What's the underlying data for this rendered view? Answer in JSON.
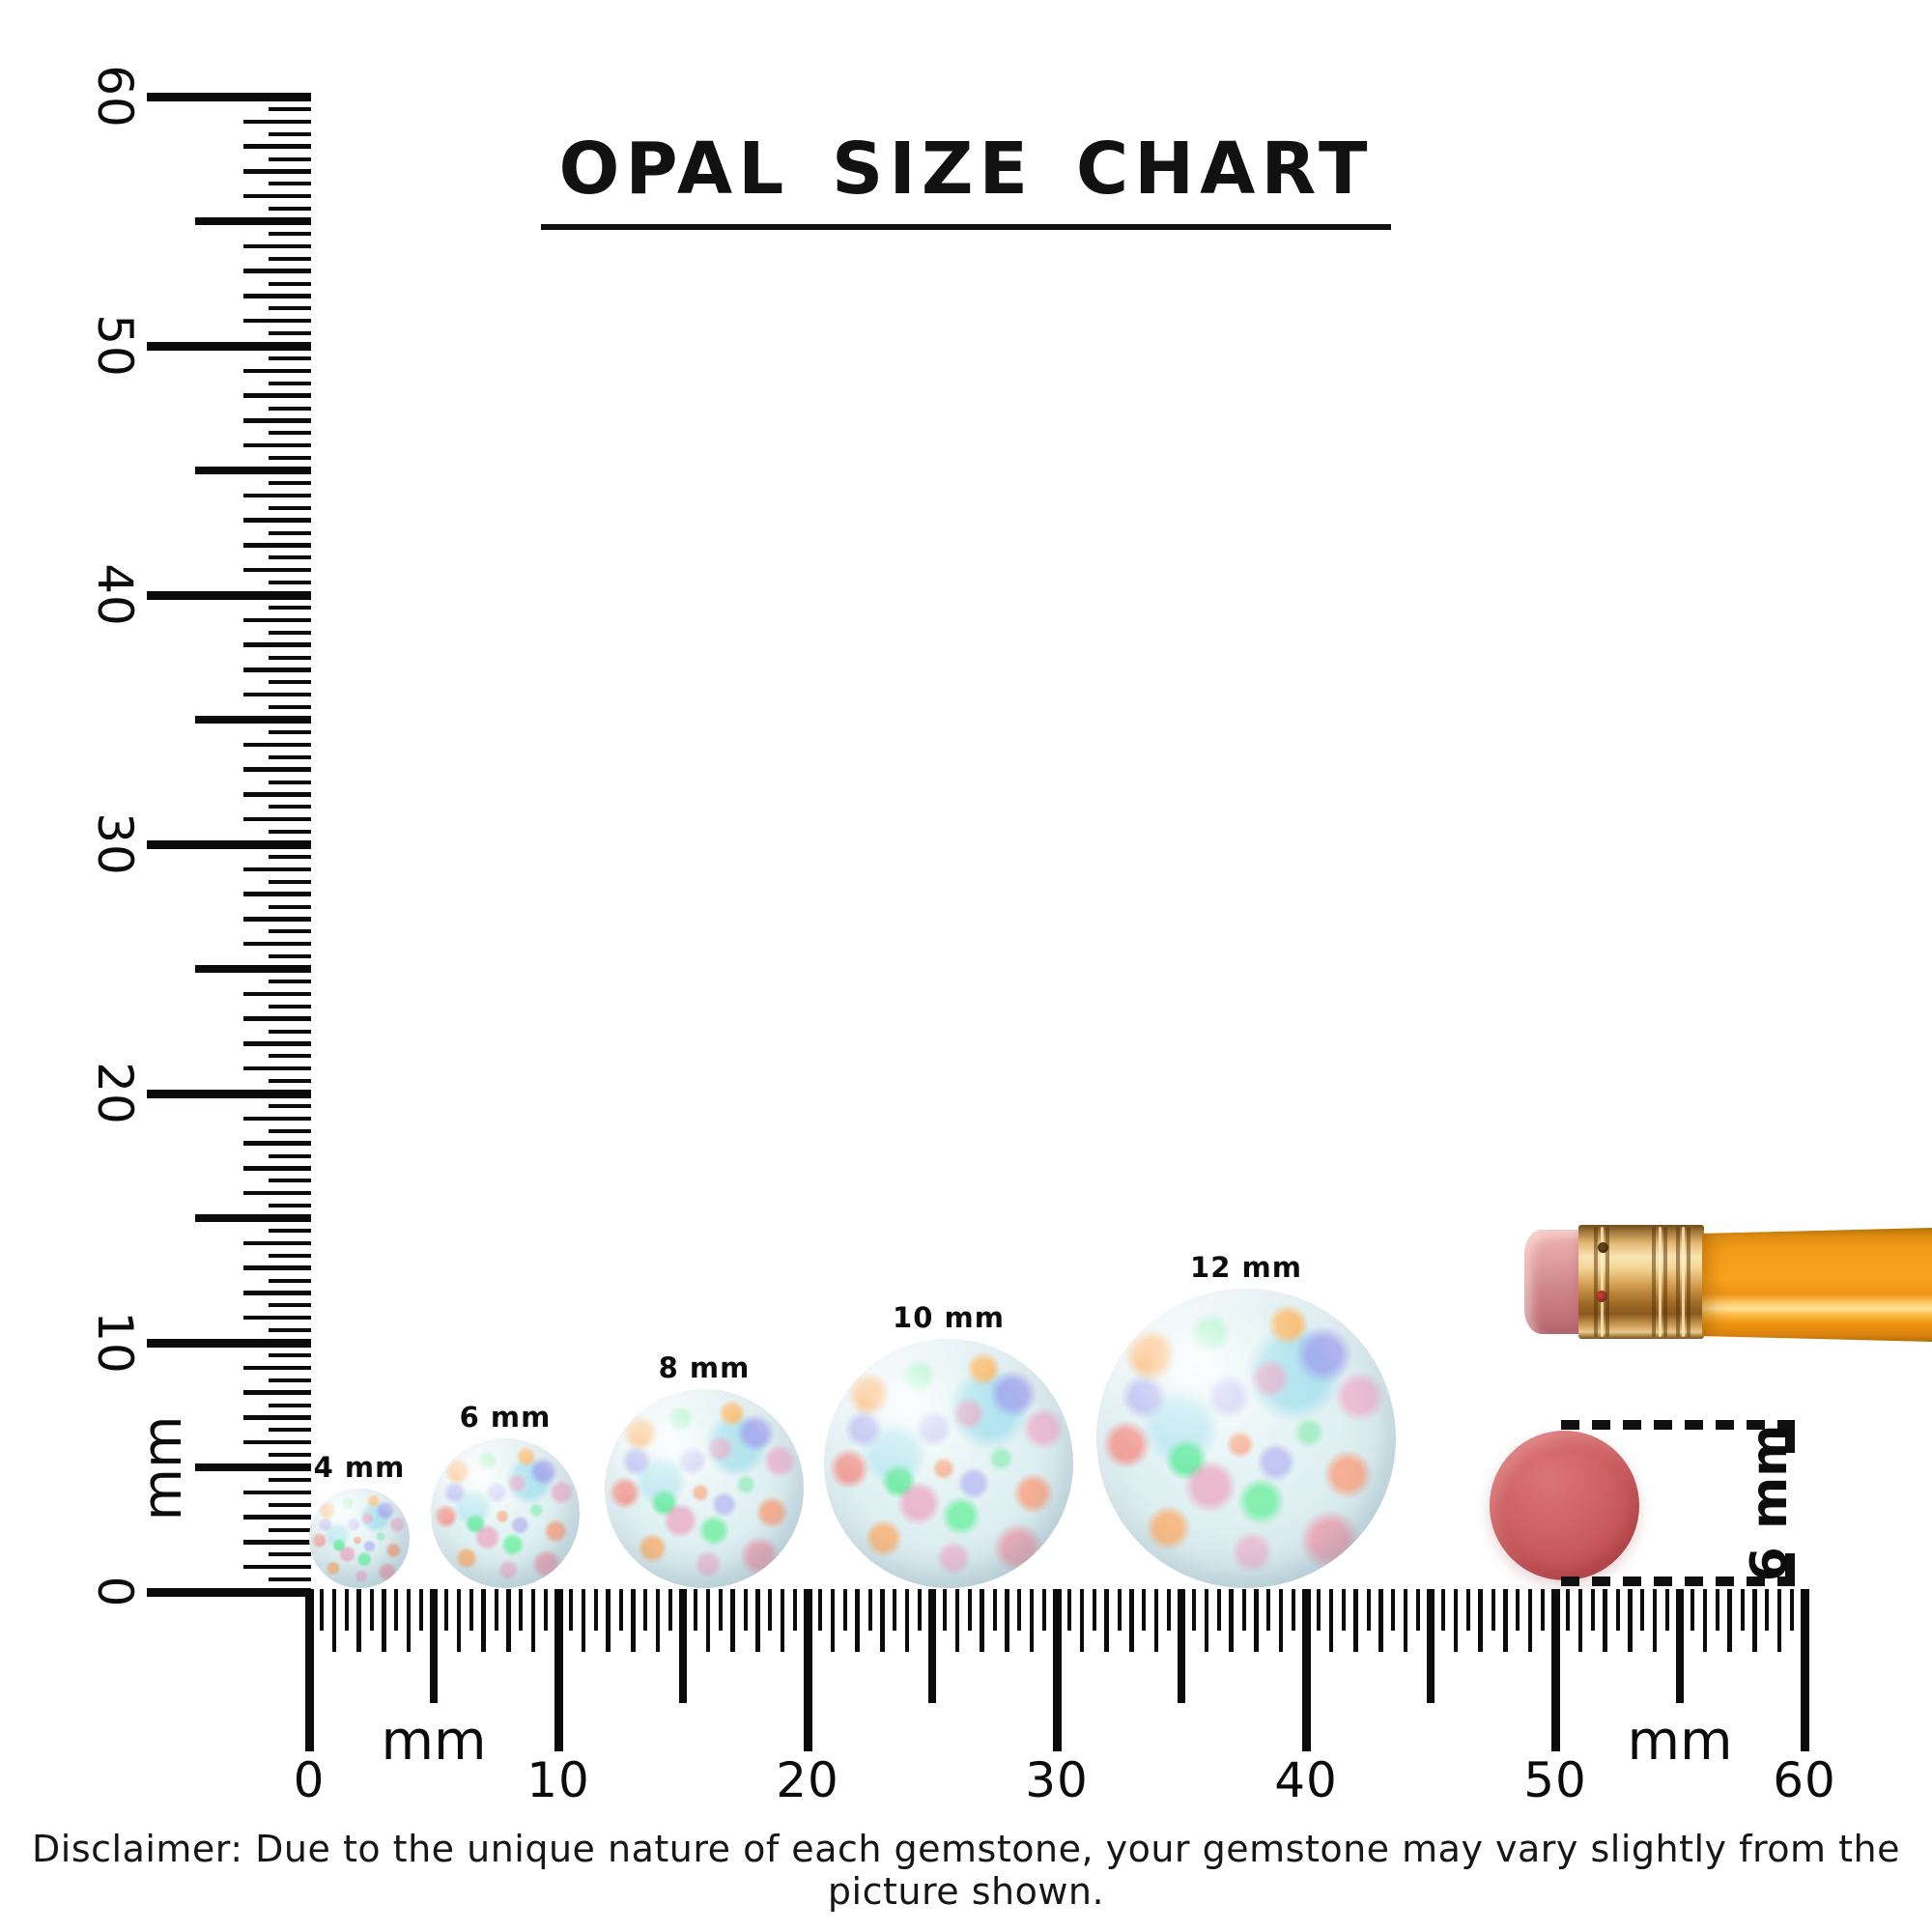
{
  "title": {
    "text": "OPAL SIZE CHART"
  },
  "rulers": {
    "unit_label": "mm",
    "vertical": {
      "axis_labels": [
        "0",
        "10",
        "20",
        "30",
        "40",
        "50",
        "60"
      ]
    },
    "horizontal": {
      "axis_labels": [
        "0",
        "10",
        "20",
        "30",
        "40",
        "50",
        "60"
      ]
    }
  },
  "opals": [
    {
      "label": "4 mm",
      "size_mm": 4
    },
    {
      "label": "6 mm",
      "size_mm": 6
    },
    {
      "label": "8 mm",
      "size_mm": 8
    },
    {
      "label": "10 mm",
      "size_mm": 10
    },
    {
      "label": "12 mm",
      "size_mm": 12
    }
  ],
  "eraser_comparison": {
    "label": "6 mm",
    "size_mm": 6,
    "color": "#c65559"
  },
  "pencil": {
    "body_color": "#f59c1b",
    "ferrule_color": "#d9a355",
    "eraser_color": "#d18a8e"
  },
  "disclaimer": {
    "text": "Disclaimer: Due to the unique nature of each gemstone, your gemstone may vary slightly from the picture shown."
  }
}
